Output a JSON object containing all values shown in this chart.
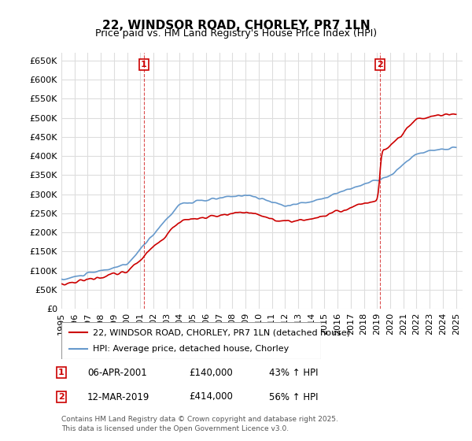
{
  "title": "22, WINDSOR ROAD, CHORLEY, PR7 1LN",
  "subtitle": "Price paid vs. HM Land Registry's House Price Index (HPI)",
  "ylabel": "",
  "ylim": [
    0,
    670000
  ],
  "yticks": [
    0,
    50000,
    100000,
    150000,
    200000,
    250000,
    300000,
    350000,
    400000,
    450000,
    500000,
    550000,
    600000,
    650000
  ],
  "year_start": 1995,
  "year_end": 2025,
  "sale1_date": "06-APR-2001",
  "sale1_price": 140000,
  "sale1_pct": "43%",
  "sale1_label": "1",
  "sale1_year": 2001.27,
  "sale2_date": "12-MAR-2019",
  "sale2_price": 414000,
  "sale2_pct": "56%",
  "sale2_label": "2",
  "sale2_year": 2019.21,
  "line1_color": "#cc0000",
  "line2_color": "#6699cc",
  "grid_color": "#dddddd",
  "bg_color": "#ffffff",
  "legend_label1": "22, WINDSOR ROAD, CHORLEY, PR7 1LN (detached house)",
  "legend_label2": "HPI: Average price, detached house, Chorley",
  "footer": "Contains HM Land Registry data © Crown copyright and database right 2025.\nThis data is licensed under the Open Government Licence v3.0.",
  "title_fontsize": 11,
  "subtitle_fontsize": 9,
  "tick_fontsize": 8,
  "legend_fontsize": 8
}
